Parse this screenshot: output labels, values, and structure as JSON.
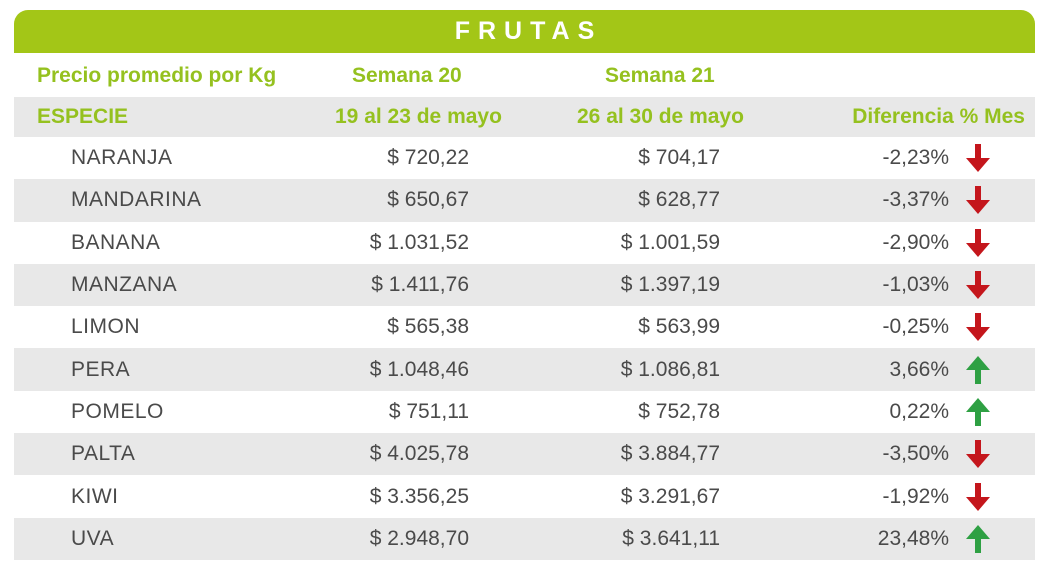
{
  "title": "FRUTAS",
  "subheader": {
    "label": "Precio promedio por Kg",
    "week20": "Semana 20",
    "week21": "Semana 21"
  },
  "header": {
    "species": "ESPECIE",
    "week20_range": "19 al 23 de mayo",
    "week21_range": "26 al 30 de mayo",
    "diff": "Diferencia % Mes"
  },
  "colors": {
    "accent": "#a3c617",
    "label_green": "#95c11f",
    "down": "#c4161c",
    "up": "#2ea043",
    "row_shade": "#e8e8e8"
  },
  "chart_data": {
    "type": "table",
    "title": "FRUTAS",
    "columns": [
      "ESPECIE",
      "19 al 23 de mayo",
      "26 al 30 de mayo",
      "Diferencia % Mes"
    ],
    "rows": [
      {
        "name": "NARANJA",
        "w20": "$ 720,22",
        "w21": "$ 704,17",
        "diff": "-2,23%",
        "trend": "down"
      },
      {
        "name": "MANDARINA",
        "w20": "$ 650,67",
        "w21": "$ 628,77",
        "diff": "-3,37%",
        "trend": "down"
      },
      {
        "name": "BANANA",
        "w20": "$ 1.031,52",
        "w21": "$ 1.001,59",
        "diff": "-2,90%",
        "trend": "down"
      },
      {
        "name": "MANZANA",
        "w20": "$ 1.411,76",
        "w21": "$ 1.397,19",
        "diff": "-1,03%",
        "trend": "down"
      },
      {
        "name": "LIMON",
        "w20": "$ 565,38",
        "w21": "$ 563,99",
        "diff": "-0,25%",
        "trend": "down"
      },
      {
        "name": "PERA",
        "w20": "$ 1.048,46",
        "w21": "$ 1.086,81",
        "diff": "3,66%",
        "trend": "up"
      },
      {
        "name": "POMELO",
        "w20": "$ 751,11",
        "w21": "$ 752,78",
        "diff": "0,22%",
        "trend": "up"
      },
      {
        "name": "PALTA",
        "w20": "$ 4.025,78",
        "w21": "$ 3.884,77",
        "diff": "-3,50%",
        "trend": "down"
      },
      {
        "name": "KIWI",
        "w20": "$ 3.356,25",
        "w21": "$ 3.291,67",
        "diff": "-1,92%",
        "trend": "down"
      },
      {
        "name": "UVA",
        "w20": "$ 2.948,70",
        "w21": "$ 3.641,11",
        "diff": "23,48%",
        "trend": "up"
      }
    ]
  }
}
